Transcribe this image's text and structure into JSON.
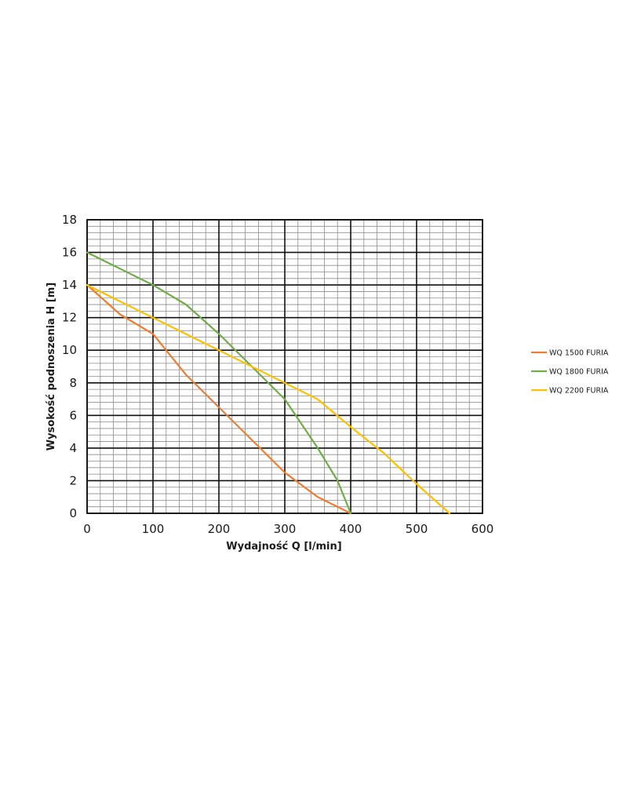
{
  "chart_data": {
    "type": "line",
    "title": "",
    "xlabel": "Wydajność Q [l/min]",
    "ylabel": "Wysokość podnoszenia H [m]",
    "xlim": [
      0,
      600
    ],
    "ylim": [
      0,
      18
    ],
    "xticks": [
      0,
      100,
      200,
      300,
      400,
      500,
      600
    ],
    "yticks": [
      0,
      2,
      4,
      6,
      8,
      10,
      12,
      14,
      16,
      18
    ],
    "grid": true,
    "minor_grid": true,
    "legend_position": "right",
    "series": [
      {
        "name": "WQ 1500 FURIA",
        "color": "#ed7d31",
        "x": [
          0,
          50,
          100,
          150,
          200,
          250,
          300,
          350,
          400
        ],
        "y": [
          14,
          12.2,
          11,
          8.5,
          6.5,
          4.5,
          2.5,
          1,
          0
        ]
      },
      {
        "name": "WQ 1800 FURIA",
        "color": "#70ad47",
        "x": [
          0,
          50,
          100,
          150,
          200,
          250,
          300,
          350,
          380,
          400
        ],
        "y": [
          16,
          15,
          14,
          12.8,
          11,
          9,
          7,
          4,
          2,
          0
        ]
      },
      {
        "name": "WQ 2200 FURIA",
        "color": "#ffc000",
        "x": [
          0,
          100,
          200,
          300,
          350,
          400,
          450,
          500,
          550
        ],
        "y": [
          14,
          12,
          10,
          8,
          7,
          5.3,
          3.7,
          1.8,
          0
        ]
      }
    ]
  }
}
